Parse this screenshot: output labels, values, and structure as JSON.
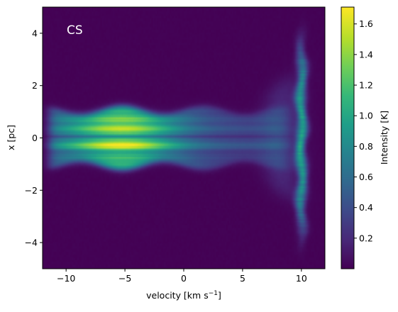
{
  "chart_data": {
    "type": "heatmap",
    "annotation": "CS",
    "xlabel": "velocity [km s",
    "xlabel_sup": "−1",
    "xlabel_end": "]",
    "ylabel": "x [pc]",
    "xlim": [
      -12,
      12
    ],
    "ylim": [
      -5,
      5
    ],
    "x_ticks": [
      -10,
      -5,
      0,
      5,
      10
    ],
    "x_tick_labels": [
      "−10",
      "−5",
      "0",
      "5",
      "10"
    ],
    "y_ticks": [
      -4,
      -2,
      0,
      2,
      4
    ],
    "y_tick_labels": [
      "−4",
      "−2",
      "0",
      "2",
      "4"
    ],
    "colorbar": {
      "label": "Intensity [K]",
      "colormap": "viridis",
      "vmin": 0.0,
      "vmax": 1.71,
      "ticks": [
        0.2,
        0.4,
        0.6,
        0.8,
        1.0,
        1.2,
        1.4,
        1.6
      ],
      "tick_labels": [
        "0.2",
        "0.4",
        "0.6",
        "0.8",
        "1.0",
        "1.2",
        "1.4",
        "1.6"
      ]
    },
    "features": [
      {
        "name": "broad component",
        "velocity_range": [
          -11.5,
          9
        ],
        "x_range": [
          -1.0,
          1.0
        ],
        "peak_velocity": -5,
        "peak_x": -0.3,
        "peak_intensity": 1.7
      },
      {
        "name": "narrow component",
        "velocity": 10,
        "x_range": [
          -4.8,
          4.8
        ],
        "peak_intensity": 1.0
      }
    ]
  }
}
